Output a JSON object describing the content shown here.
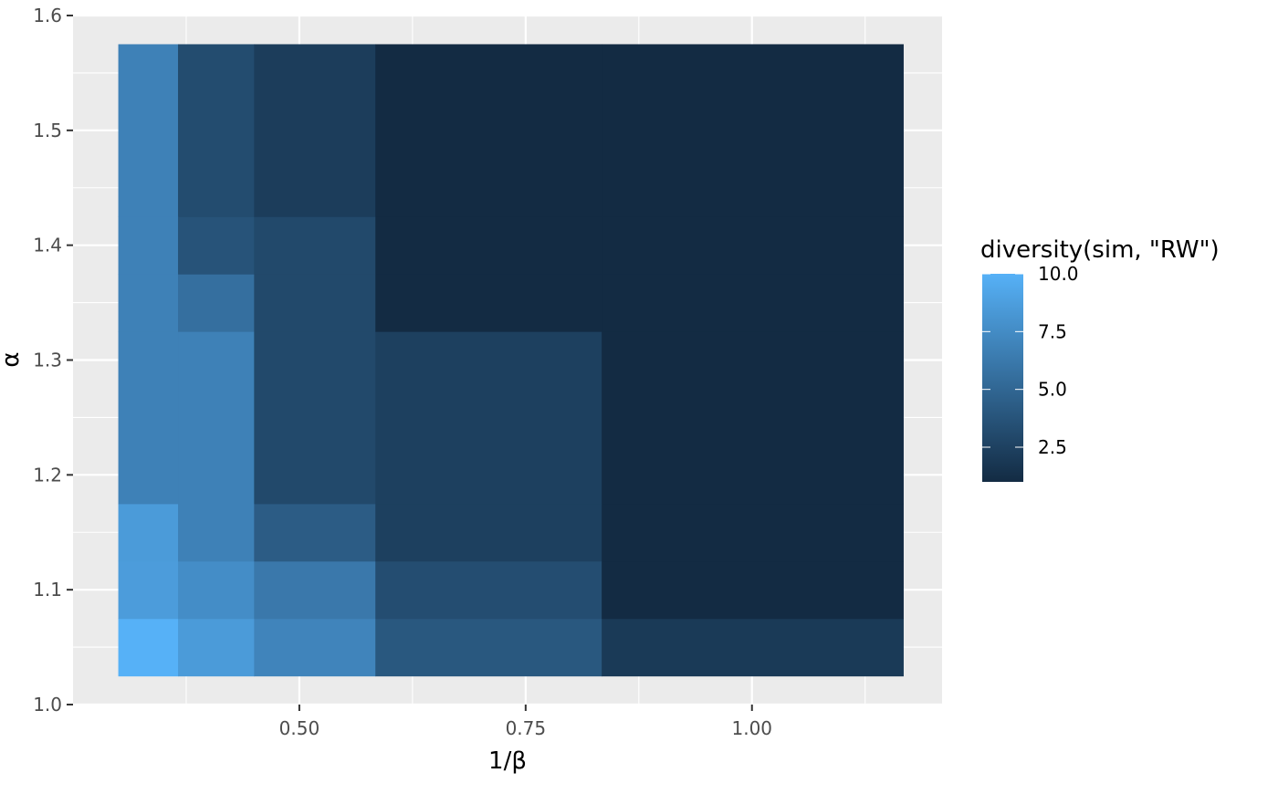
{
  "chart_data": {
    "type": "heatmap",
    "xlabel": "1/β",
    "ylabel": "α",
    "xlim": [
      0.25,
      1.21
    ],
    "ylim": [
      1.0,
      1.6
    ],
    "x_ticks": [
      0.5,
      0.75,
      1.0
    ],
    "x_tick_labels": [
      "0.50",
      "0.75",
      "1.00"
    ],
    "y_ticks": [
      1.0,
      1.1,
      1.2,
      1.3,
      1.4,
      1.5,
      1.6
    ],
    "y_tick_labels": [
      "1.0",
      "1.1",
      "1.2",
      "1.3",
      "1.4",
      "1.5",
      "1.6"
    ],
    "x_bins": [
      0.3,
      0.366,
      0.45,
      0.584,
      0.834,
      1.167
    ],
    "y_bins": [
      1.025,
      1.075,
      1.125,
      1.175,
      1.325,
      1.375,
      1.425,
      1.575
    ],
    "values": [
      [
        10.0,
        8.5,
        7.0,
        4.0,
        2.0
      ],
      [
        8.6,
        7.6,
        6.2,
        3.3,
        1.0
      ],
      [
        8.5,
        6.8,
        4.3,
        2.4,
        1.0
      ],
      [
        6.8,
        6.8,
        3.0,
        2.4,
        1.0
      ],
      [
        6.8,
        5.6,
        3.0,
        1.0,
        1.0
      ],
      [
        6.8,
        3.7,
        3.0,
        1.0,
        1.0
      ],
      [
        6.8,
        3.2,
        2.2,
        1.0,
        1.0
      ]
    ],
    "color_scale": {
      "low": "#132B43",
      "high": "#56B1F7",
      "min": 1.0,
      "max": 10.0
    },
    "legend": {
      "title": "diversity(sim, \"RW\")",
      "position": "right",
      "breaks": [
        10.0,
        7.5,
        5.0,
        2.5
      ],
      "break_labels": [
        "10.0",
        "7.5",
        "5.0",
        "2.5"
      ]
    },
    "grid": true,
    "panel_background": "#EBEBEB"
  }
}
